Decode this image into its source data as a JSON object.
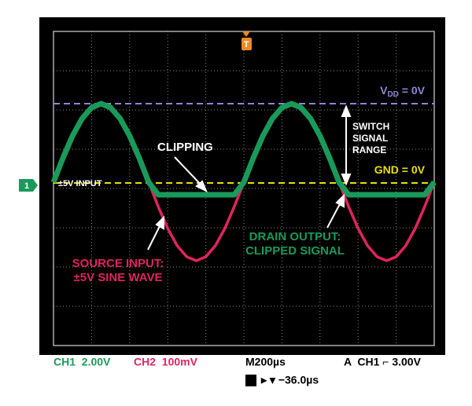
{
  "chart_data": {
    "type": "line",
    "x": [
      0,
      0.25,
      0.5,
      0.75,
      1,
      1.25,
      1.5,
      1.75,
      2,
      2.25,
      2.5,
      2.75,
      3,
      3.25,
      3.5,
      3.75,
      4,
      4.25,
      4.5,
      4.75,
      5,
      5.25,
      5.5,
      5.75,
      6,
      6.25,
      6.5,
      6.75,
      7,
      7.25,
      7.5,
      7.75,
      8,
      8.25,
      8.5,
      8.75,
      9,
      9.25,
      9.5,
      9.75,
      10
    ],
    "series": [
      {
        "name": "CH2",
        "color": "#e0245e",
        "values": [
          0.16,
          0.78,
          1.34,
          1.78,
          2.06,
          2.16,
          2.06,
          1.78,
          1.34,
          0.78,
          0.16,
          -0.46,
          -1.02,
          -1.46,
          -1.74,
          -1.84,
          -1.74,
          -1.46,
          -1.02,
          -0.46,
          0.16,
          0.78,
          1.34,
          1.78,
          2.06,
          2.16,
          2.06,
          1.78,
          1.34,
          0.78,
          0.16,
          -0.46,
          -1.02,
          -1.46,
          -1.74,
          -1.84,
          -1.74,
          -1.46,
          -1.02,
          -0.46,
          0.16
        ]
      },
      {
        "name": "CH1",
        "color": "#1a9a5a",
        "values": [
          0.16,
          0.78,
          1.34,
          1.78,
          2.06,
          2.16,
          2.06,
          1.78,
          1.34,
          0.78,
          0.16,
          -0.16,
          -0.16,
          -0.16,
          -0.16,
          -0.16,
          -0.16,
          -0.16,
          -0.16,
          -0.16,
          0.16,
          0.78,
          1.34,
          1.78,
          2.06,
          2.16,
          2.06,
          1.78,
          1.34,
          0.78,
          0.16,
          -0.16,
          -0.16,
          -0.16,
          -0.16,
          -0.16,
          -0.16,
          -0.16,
          -0.16,
          -0.16,
          0.16
        ]
      }
    ],
    "xlim": [
      0,
      10
    ],
    "ylim": [
      -4,
      4
    ],
    "xticks": [
      0,
      1,
      2,
      3,
      4,
      5,
      6,
      7,
      8,
      9,
      10
    ],
    "yticks": [
      -4,
      -3,
      -2,
      -1,
      0,
      1,
      2,
      3,
      4
    ],
    "grid": true,
    "reference_lines": [
      {
        "label": "V",
        "label_sub": "DD",
        "label_rest": " = 0V",
        "value": 2.16,
        "color": "#8f86d8"
      },
      {
        "label": "GND = 0V",
        "value": 0.14,
        "color": "#e8e000"
      }
    ],
    "annotations": {
      "clipping": "CLIPPING",
      "input": "±5V INPUT",
      "range": [
        "SWITCH",
        "SIGNAL",
        "RANGE"
      ],
      "drain": [
        "DRAIN OUTPUT:",
        "CLIPPED SIGNAL"
      ],
      "source": [
        "SOURCE INPUT:",
        "±5V SINE WAVE"
      ],
      "channel_marker": "1",
      "trigger_marker": "T"
    },
    "readouts": {
      "ch1": "CH1  2.00V",
      "ch2": "CH2  100mV",
      "timebase": "M200µs",
      "trigger": "A  CH1 ⌐ 3.00V",
      "delay": "▸ ▾ −36.0µs"
    }
  }
}
